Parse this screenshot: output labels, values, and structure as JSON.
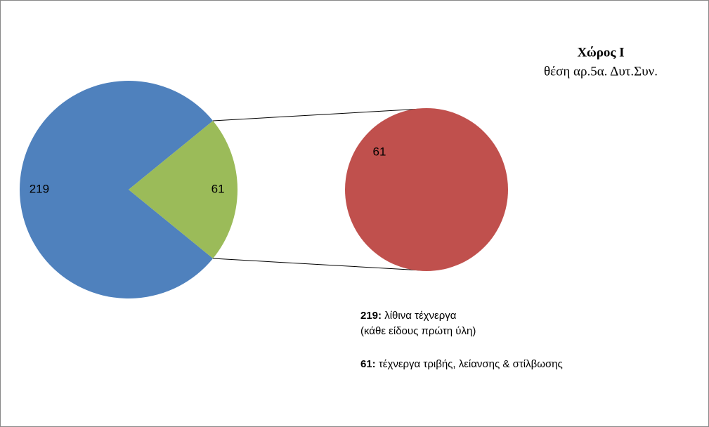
{
  "chart_data": {
    "type": "pie_of_pie",
    "title": "Χώρος  Ι",
    "subtitle": "θέση αρ.5α. Δυτ.Συν.",
    "values": [
      219,
      61
    ],
    "colors": [
      "#4f81bd",
      "#9bbb59"
    ],
    "secondary": {
      "values": [
        61
      ],
      "color": "#c0504d"
    },
    "annotations": [
      {
        "bold": "219:",
        "text": " λίθινα τέχνεργα"
      },
      {
        "text": "(κάθε είδους πρώτη  ύλη)"
      },
      {
        "bold": "61:",
        "text": " τέχνεργα τριβής, λείανσης & στίλβωσης"
      }
    ]
  }
}
